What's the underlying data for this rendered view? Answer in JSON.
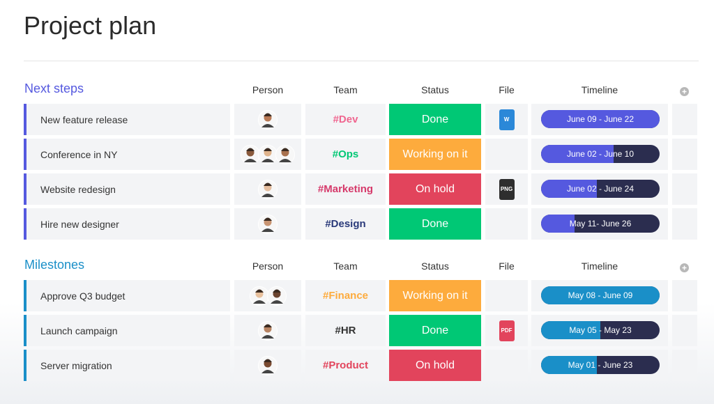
{
  "header": {
    "title": "Project plan"
  },
  "groups": [
    {
      "name": "Next steps",
      "color": "#5559df",
      "columns": [
        "Person",
        "Team",
        "Status",
        "File",
        "Timeline"
      ],
      "rows": [
        {
          "item": "New feature release",
          "avatars": [
            "#b97a56"
          ],
          "team": "#Dev",
          "team_color": "#f0658f",
          "status": "Done",
          "status_color": "#00c875",
          "file": {
            "label": "W",
            "color": "#2b88d8"
          },
          "timeline": "June 09 - June 22",
          "progress": 1
        },
        {
          "item": "Conference in NY",
          "avatars": [
            "#8a5a3c",
            "#e0b48c",
            "#a8714e"
          ],
          "team": "#Ops",
          "team_color": "#00c875",
          "status": "Working on it",
          "status_color": "#fdab3d",
          "timeline": "June 02 - June 10",
          "progress": 0.61
        },
        {
          "item": "Website redesign",
          "avatars": [
            "#e6bfa0"
          ],
          "team": "#Marketing",
          "team_color": "#d63a6b",
          "status": "On hold",
          "status_color": "#e2445c",
          "file": {
            "label": "PNG",
            "color": "#2e2e2e"
          },
          "timeline": "June 02 - June 24",
          "progress": 0.47
        },
        {
          "item": "Hire new designer",
          "avatars": [
            "#c99572"
          ],
          "team": "#Design",
          "team_color": "#2a3a7a",
          "status": "Done",
          "status_color": "#00c875",
          "timeline": "May 11- June 26",
          "progress": 0.28
        }
      ]
    },
    {
      "name": "Milestones",
      "color": "#1a8fc8",
      "columns": [
        "Person",
        "Team",
        "Status",
        "File",
        "Timeline"
      ],
      "rows": [
        {
          "item": "Approve Q3 budget",
          "avatars": [
            "#e8c09c",
            "#6b4430"
          ],
          "team": "#Finance",
          "team_color": "#fdab3d",
          "status": "Working on it",
          "status_color": "#fdab3d",
          "timeline": "May 08 - June 09",
          "progress": 1
        },
        {
          "item": "Launch campaign",
          "avatars": [
            "#b88463"
          ],
          "team": "#HR",
          "team_color": "#333333",
          "status": "Done",
          "status_color": "#00c875",
          "file": {
            "label": "PDF",
            "color": "#e2445c"
          },
          "timeline": "May 05 - May 23",
          "progress": 0.5
        },
        {
          "item": "Server migration",
          "avatars": [
            "#7a4a30"
          ],
          "team": "#Product",
          "team_color": "#e2445c",
          "status": "On hold",
          "status_color": "#e2445c",
          "timeline": "May 01 - June 23",
          "progress": 0.47
        }
      ]
    }
  ]
}
